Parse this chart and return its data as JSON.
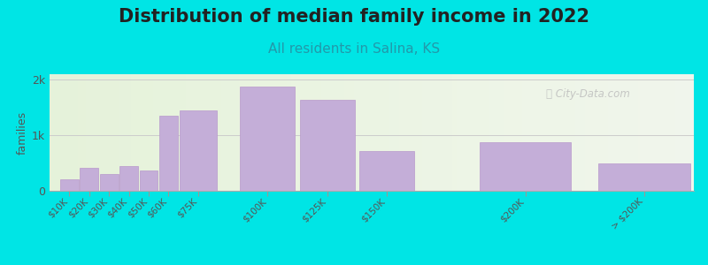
{
  "title": "Distribution of median family income in 2022",
  "subtitle": "All residents in Salina, KS",
  "ylabel": "families",
  "background_color": "#00e5e5",
  "plot_bg_color": "#eef5e8",
  "bar_color": "#c4aed8",
  "bar_edge_color": "#b898cc",
  "categories": [
    "$10K",
    "$20K",
    "$30K",
    "$40K",
    "$50K",
    "$60K",
    "$75K",
    "$100K",
    "$125K",
    "$150K",
    "$200K",
    "> $200K"
  ],
  "values": [
    200,
    420,
    310,
    450,
    370,
    1350,
    1440,
    1870,
    1640,
    720,
    880,
    500
  ],
  "bar_positions": [
    0,
    1,
    2,
    3,
    4,
    5,
    6,
    9,
    12,
    15,
    21,
    27
  ],
  "bar_widths": [
    1,
    1,
    1,
    1,
    1,
    1,
    2,
    3,
    3,
    3,
    5,
    5
  ],
  "yticks": [
    0,
    1000,
    2000
  ],
  "ytick_labels": [
    "0",
    "1k",
    "2k"
  ],
  "ylim": [
    0,
    2100
  ],
  "xlim": [
    -0.5,
    32
  ],
  "watermark": "City-Data.com",
  "title_fontsize": 15,
  "subtitle_fontsize": 11,
  "ylabel_fontsize": 9
}
